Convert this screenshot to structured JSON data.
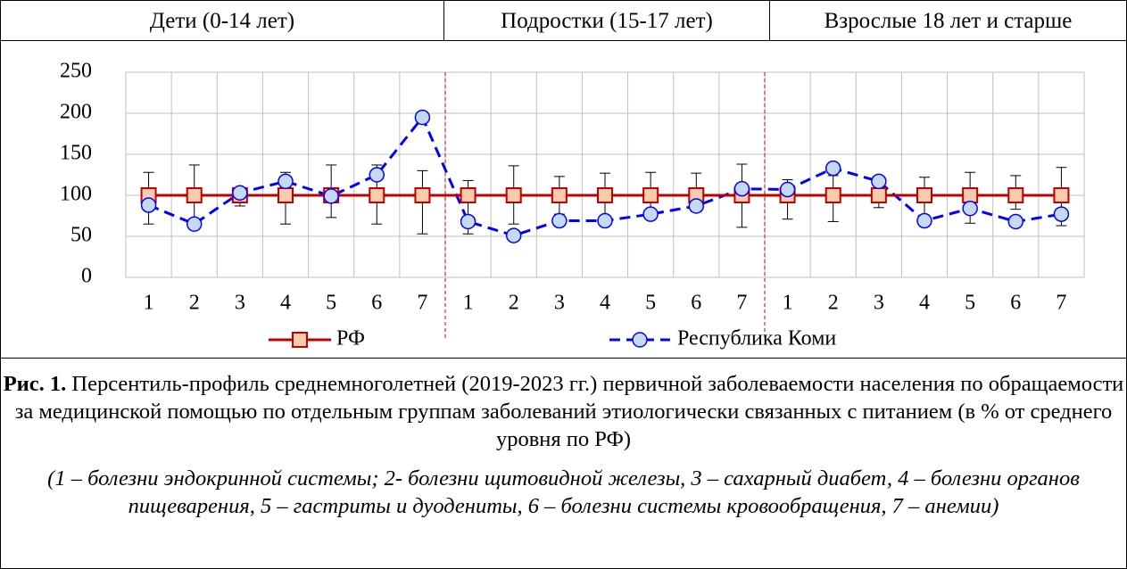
{
  "chart_data": {
    "type": "line",
    "groups": [
      "Дети (0-14 лет)",
      "Подростки (15-17 лет)",
      "Взрослые 18 лет и старше"
    ],
    "categories": [
      "1",
      "2",
      "3",
      "4",
      "5",
      "6",
      "7",
      "1",
      "2",
      "3",
      "4",
      "5",
      "6",
      "7",
      "1",
      "2",
      "3",
      "4",
      "5",
      "6",
      "7"
    ],
    "series": [
      {
        "name": "РФ",
        "color": "#c00000",
        "values": [
          100,
          100,
          100,
          100,
          100,
          100,
          100,
          100,
          100,
          100,
          100,
          100,
          100,
          100,
          100,
          100,
          100,
          100,
          100,
          100,
          100
        ],
        "lower": [
          65,
          63,
          87,
          65,
          73,
          65,
          53,
          53,
          65,
          77,
          73,
          73,
          80,
          61,
          71,
          68,
          85,
          76,
          66,
          83,
          63
        ],
        "upper": [
          128,
          137,
          104,
          128,
          137,
          137,
          130,
          118,
          136,
          123,
          127,
          128,
          127,
          138,
          119,
          124,
          121,
          122,
          128,
          124,
          134
        ]
      },
      {
        "name": "Республика Коми",
        "color": "#0000ff",
        "values": [
          88,
          65,
          103,
          117,
          99,
          125,
          195,
          68,
          51,
          69,
          69,
          77,
          87,
          108,
          107,
          133,
          117,
          69,
          84,
          68,
          77
        ]
      }
    ],
    "ylim": [
      0,
      250
    ],
    "yticks": [
      0,
      50,
      100,
      150,
      200,
      250
    ],
    "grid": true
  },
  "caption": {
    "label": "Рис. 1.",
    "text": "Персентиль-профиль среднемноголетней (2019-2023 гг.) первичной заболеваемости населения по обращаемости за медицинской помощью по отдельным группам заболеваний этиологически связанных с питанием (в % от среднего уровня по РФ)"
  },
  "note": "(1 – болезни эндокринной системы; 2- болезни щитовидной железы, 3 – сахарный диабет, 4 – болезни органов пищеварения, 5 – гастриты и дуодениты, 6 – болезни системы кровообращения, 7 – анемии)"
}
